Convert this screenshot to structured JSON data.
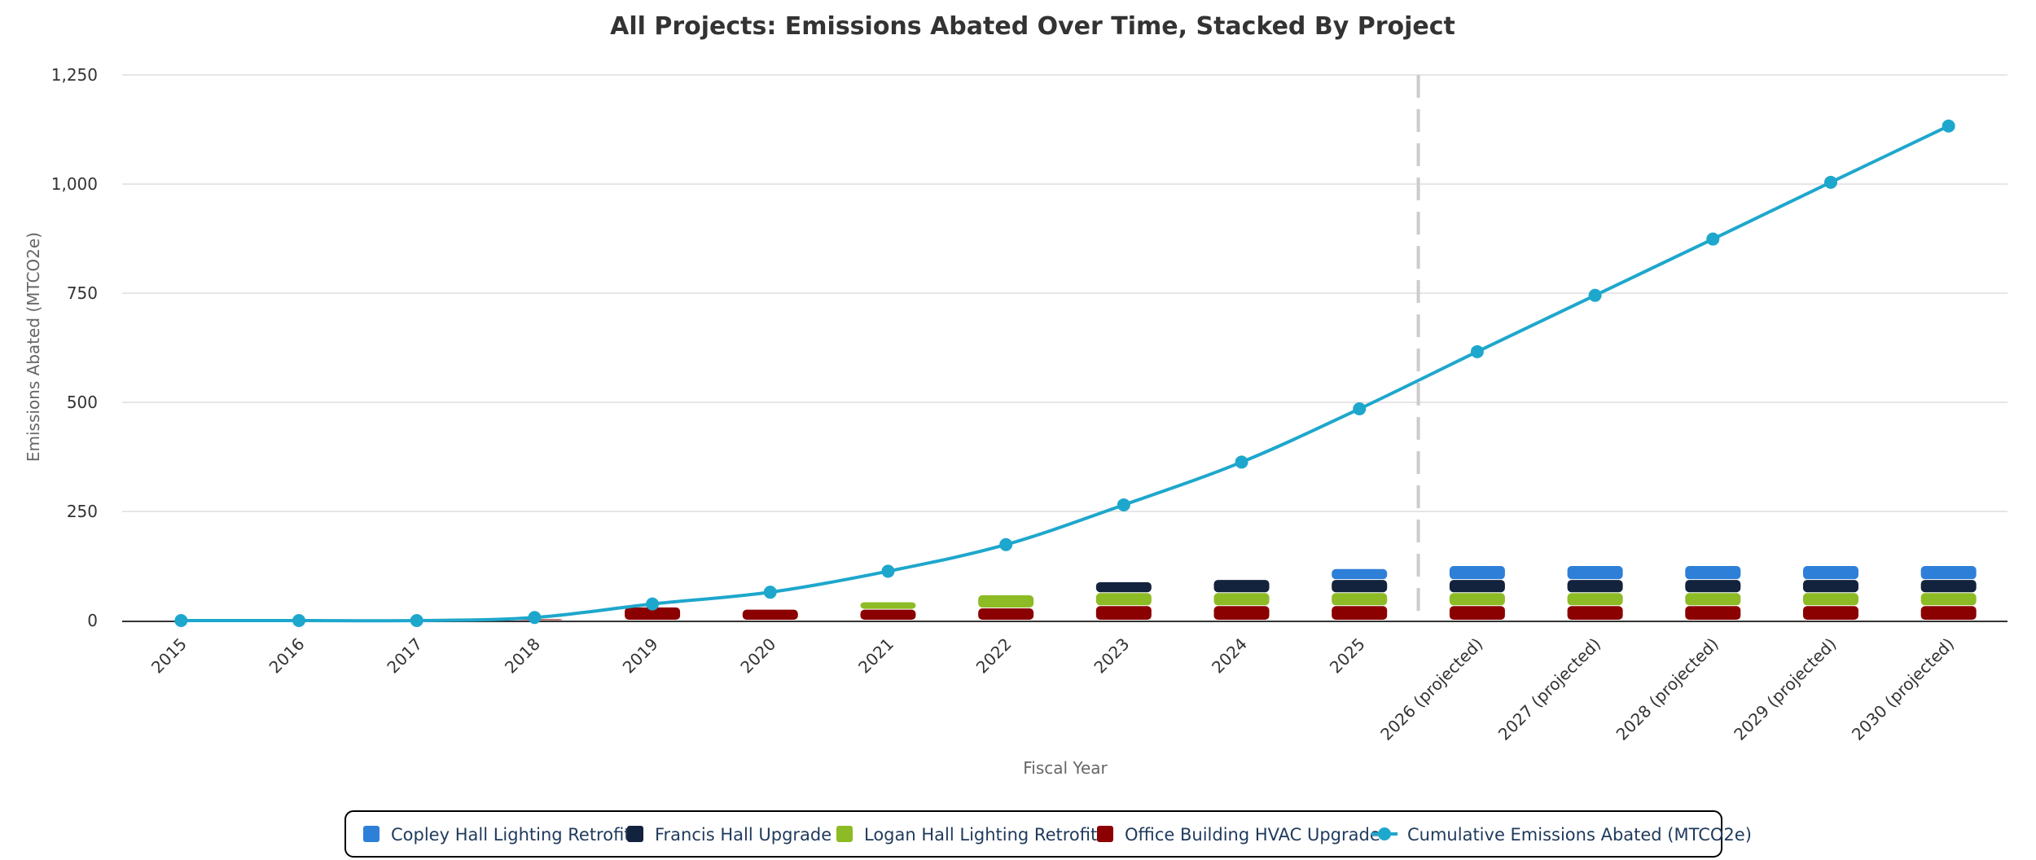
{
  "chart_data": {
    "type": "bar",
    "title": "All Projects: Emissions Abated Over Time, Stacked By Project",
    "xlabel": "Fiscal Year",
    "ylabel": "Emissions Abated (MTCO2e)",
    "categories": [
      "2015",
      "2016",
      "2017",
      "2018",
      "2019",
      "2020",
      "2021",
      "2022",
      "2023",
      "2024",
      "2025",
      "2026 (projected)",
      "2027 (projected)",
      "2028 (projected)",
      "2029 (projected)",
      "2030 (projected)"
    ],
    "ylim": [
      0,
      1250
    ],
    "yticks": [
      0,
      250,
      500,
      750,
      1000,
      1250
    ],
    "ytick_labels": [
      "0",
      "250",
      "500",
      "750",
      "1,000",
      "1,250"
    ],
    "grid": true,
    "stacked": true,
    "projection_divider_after": "2025",
    "legend_position": "bottom",
    "series": [
      {
        "name": "Copley Hall Lighting Retrofit",
        "type": "bar",
        "color": "#2e7fd8",
        "values": [
          0,
          0,
          0,
          0,
          0,
          0,
          0,
          0,
          0,
          0,
          25,
          32,
          32,
          32,
          32,
          32
        ]
      },
      {
        "name": "Francis Hall Upgrade",
        "type": "bar",
        "color": "#13233d",
        "values": [
          0,
          0,
          0,
          0,
          0,
          0,
          0,
          0,
          25,
          30,
          30,
          30,
          30,
          30,
          30,
          30
        ]
      },
      {
        "name": "Logan Hall Lighting Retrofit",
        "type": "bar",
        "color": "#8dbb25",
        "values": [
          0,
          0,
          0,
          0,
          0,
          0,
          17,
          30,
          30,
          30,
          30,
          30,
          30,
          30,
          30,
          30
        ]
      },
      {
        "name": "Office Building HVAC Upgrade",
        "type": "bar",
        "color": "#8b0000",
        "values": [
          0,
          0,
          0,
          3,
          30,
          25,
          25,
          28,
          33,
          33,
          33,
          33,
          33,
          33,
          33,
          33
        ]
      },
      {
        "name": "Cumulative Emissions Abated (MTCO2e)",
        "type": "line",
        "color": "#1ea7cc",
        "values": [
          0,
          0,
          0,
          7,
          38,
          65,
          113,
          174,
          265,
          363,
          485,
          616,
          745,
          874,
          1004,
          1133
        ]
      }
    ]
  }
}
